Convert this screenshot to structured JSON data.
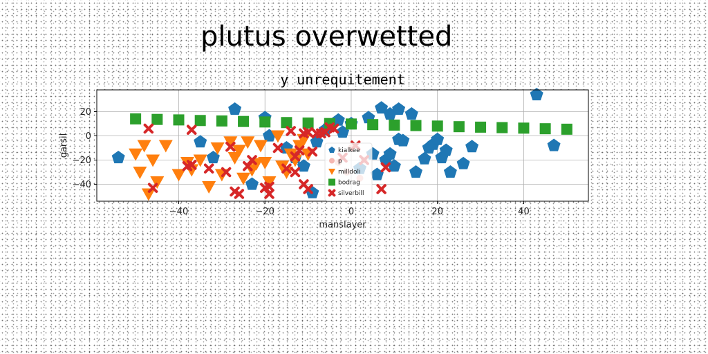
{
  "suptitle": "plutus overwetted",
  "chart_data": {
    "type": "scatter",
    "title": "y unrequitement",
    "xlabel": "manslayer",
    "ylabel": "garsil",
    "xlim": [
      -59,
      55
    ],
    "ylim": [
      -54,
      38
    ],
    "xticks": [
      -40,
      -20,
      0,
      20,
      40
    ],
    "yticks": [
      -40,
      -20,
      0,
      20
    ],
    "grid": true,
    "legend_position": "center",
    "series": [
      {
        "name": "kialkee",
        "marker": "pentagon",
        "color": "#1f77b4",
        "points": [
          [
            -54,
            -18
          ],
          [
            -35,
            -5
          ],
          [
            -32,
            -18
          ],
          [
            -27,
            22
          ],
          [
            -23,
            -40
          ],
          [
            -20,
            15
          ],
          [
            -19,
            0
          ],
          [
            -15,
            -10
          ],
          [
            -13,
            -18
          ],
          [
            -11,
            -25
          ],
          [
            -9,
            -47
          ],
          [
            -8,
            -5
          ],
          [
            -6,
            5
          ],
          [
            -5,
            8
          ],
          [
            -3,
            13
          ],
          [
            -2,
            3
          ],
          [
            0,
            10
          ],
          [
            2,
            -27
          ],
          [
            4,
            15
          ],
          [
            5,
            -15
          ],
          [
            6,
            -32
          ],
          [
            7,
            23
          ],
          [
            8,
            -20
          ],
          [
            9,
            18
          ],
          [
            9,
            -15
          ],
          [
            10,
            -25
          ],
          [
            11,
            -3
          ],
          [
            11,
            22
          ],
          [
            12,
            -4
          ],
          [
            14,
            18
          ],
          [
            15,
            -30
          ],
          [
            17,
            -19
          ],
          [
            18,
            -10
          ],
          [
            19,
            -7
          ],
          [
            20,
            -3
          ],
          [
            21,
            -18
          ],
          [
            22,
            -12
          ],
          [
            23,
            -30
          ],
          [
            26,
            -23
          ],
          [
            28,
            -9
          ],
          [
            43,
            34
          ],
          [
            47,
            -8
          ]
        ]
      },
      {
        "name": "p",
        "marker": "circle",
        "color": "#f5b7b1",
        "points": [
          [
            -3,
            -22
          ],
          [
            -1,
            -30
          ],
          [
            2,
            -35
          ],
          [
            3,
            -20
          ],
          [
            0,
            -10
          ]
        ]
      },
      {
        "name": "milldoli",
        "marker": "triangle-down",
        "color": "#ff7f0e",
        "points": [
          [
            -50,
            -15
          ],
          [
            -49,
            -30
          ],
          [
            -48,
            -8
          ],
          [
            -47,
            -48
          ],
          [
            -46,
            -20
          ],
          [
            -45,
            -38
          ],
          [
            -43,
            -8
          ],
          [
            -40,
            -32
          ],
          [
            -38,
            -22
          ],
          [
            -37,
            -28
          ],
          [
            -35,
            -20
          ],
          [
            -33,
            -42
          ],
          [
            -31,
            -10
          ],
          [
            -30,
            -32
          ],
          [
            -28,
            -5
          ],
          [
            -27,
            -18
          ],
          [
            -26,
            -12
          ],
          [
            -25,
            -35
          ],
          [
            -24,
            -5
          ],
          [
            -23,
            -28
          ],
          [
            -22,
            -23
          ],
          [
            -21,
            -8
          ],
          [
            -20,
            -22
          ],
          [
            -19,
            -38
          ],
          [
            -17,
            0
          ],
          [
            -16,
            -25
          ],
          [
            -15,
            -30
          ],
          [
            -14,
            -15
          ],
          [
            -13,
            -20
          ],
          [
            -12,
            -8
          ],
          [
            -11,
            -3
          ],
          [
            -10,
            -15
          ]
        ]
      },
      {
        "name": "bodrag",
        "marker": "square",
        "color": "#2ca02c",
        "points": [
          [
            -50,
            14
          ],
          [
            -45,
            13.6
          ],
          [
            -40,
            13.2
          ],
          [
            -35,
            12.7
          ],
          [
            -30,
            12.3
          ],
          [
            -25,
            11.9
          ],
          [
            -20,
            11.5
          ],
          [
            -15,
            11
          ],
          [
            -10,
            10.6
          ],
          [
            -5,
            10.2
          ],
          [
            0,
            9.8
          ],
          [
            5,
            9.3
          ],
          [
            10,
            8.9
          ],
          [
            15,
            8.5
          ],
          [
            20,
            8.1
          ],
          [
            25,
            7.6
          ],
          [
            30,
            7.2
          ],
          [
            35,
            6.8
          ],
          [
            40,
            6.4
          ],
          [
            45,
            5.9
          ],
          [
            50,
            5.5
          ]
        ]
      },
      {
        "name": "silverbill",
        "marker": "x",
        "color": "#d62728",
        "points": [
          [
            -47,
            6
          ],
          [
            -46,
            -43
          ],
          [
            -38,
            -25
          ],
          [
            -37,
            -24
          ],
          [
            -37,
            5
          ],
          [
            -33,
            -27
          ],
          [
            -29,
            -30
          ],
          [
            -28,
            -9
          ],
          [
            -27,
            -46
          ],
          [
            -26,
            -48
          ],
          [
            -24,
            -25
          ],
          [
            -23,
            -20
          ],
          [
            -20,
            -43
          ],
          [
            -19,
            -42
          ],
          [
            -19,
            -48
          ],
          [
            -17,
            -10
          ],
          [
            -15,
            -27
          ],
          [
            -14,
            4
          ],
          [
            -13,
            -30
          ],
          [
            -13,
            -17
          ],
          [
            -12,
            -12
          ],
          [
            -11,
            -40
          ],
          [
            -10,
            -44
          ],
          [
            -11,
            2
          ],
          [
            -10,
            3
          ],
          [
            -9,
            -13
          ],
          [
            -8,
            2
          ],
          [
            -7,
            2
          ],
          [
            -6,
            3
          ],
          [
            -5,
            7
          ],
          [
            -4,
            6
          ],
          [
            -2,
            -18
          ],
          [
            1,
            -8
          ],
          [
            3,
            -20
          ],
          [
            7,
            -44
          ],
          [
            8,
            -26
          ]
        ]
      }
    ]
  }
}
